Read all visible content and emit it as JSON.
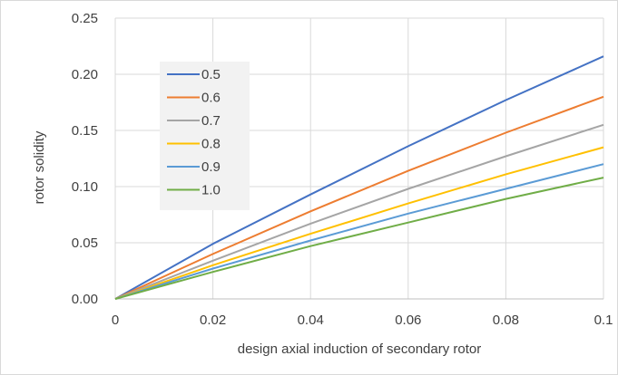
{
  "chart_data": {
    "type": "line",
    "title": "",
    "xlabel": "design axial induction of secondary rotor",
    "ylabel": "rotor solidity",
    "xlim": [
      0,
      0.1
    ],
    "ylim": [
      0,
      0.25
    ],
    "x_ticks": [
      0,
      0.02,
      0.04,
      0.06,
      0.08,
      0.1
    ],
    "x_tick_labels": [
      "0",
      "0.02",
      "0.04",
      "0.06",
      "0.08",
      "0.1"
    ],
    "y_ticks": [
      0,
      0.05,
      0.1,
      0.15,
      0.2,
      0.25
    ],
    "y_tick_labels": [
      "0.00",
      "0.05",
      "0.10",
      "0.15",
      "0.20",
      "0.25"
    ],
    "grid": true,
    "legend_position": "top-left",
    "x": [
      0,
      0.02,
      0.04,
      0.06,
      0.08,
      0.1
    ],
    "series": [
      {
        "name": "0.5",
        "color": "#4472C4",
        "values": [
          0,
          0.049,
          0.093,
          0.136,
          0.177,
          0.216
        ]
      },
      {
        "name": "0.6",
        "color": "#ED7D31",
        "values": [
          0,
          0.04,
          0.078,
          0.114,
          0.148,
          0.18
        ]
      },
      {
        "name": "0.7",
        "color": "#A5A5A5",
        "values": [
          0,
          0.034,
          0.067,
          0.098,
          0.127,
          0.155
        ]
      },
      {
        "name": "0.8",
        "color": "#FFC000",
        "values": [
          0,
          0.03,
          0.058,
          0.085,
          0.111,
          0.135
        ]
      },
      {
        "name": "0.9",
        "color": "#5B9BD5",
        "values": [
          0,
          0.027,
          0.052,
          0.076,
          0.098,
          0.12
        ]
      },
      {
        "name": "1.0",
        "color": "#70AD47",
        "values": [
          0,
          0.024,
          0.047,
          0.068,
          0.089,
          0.108
        ]
      }
    ]
  }
}
